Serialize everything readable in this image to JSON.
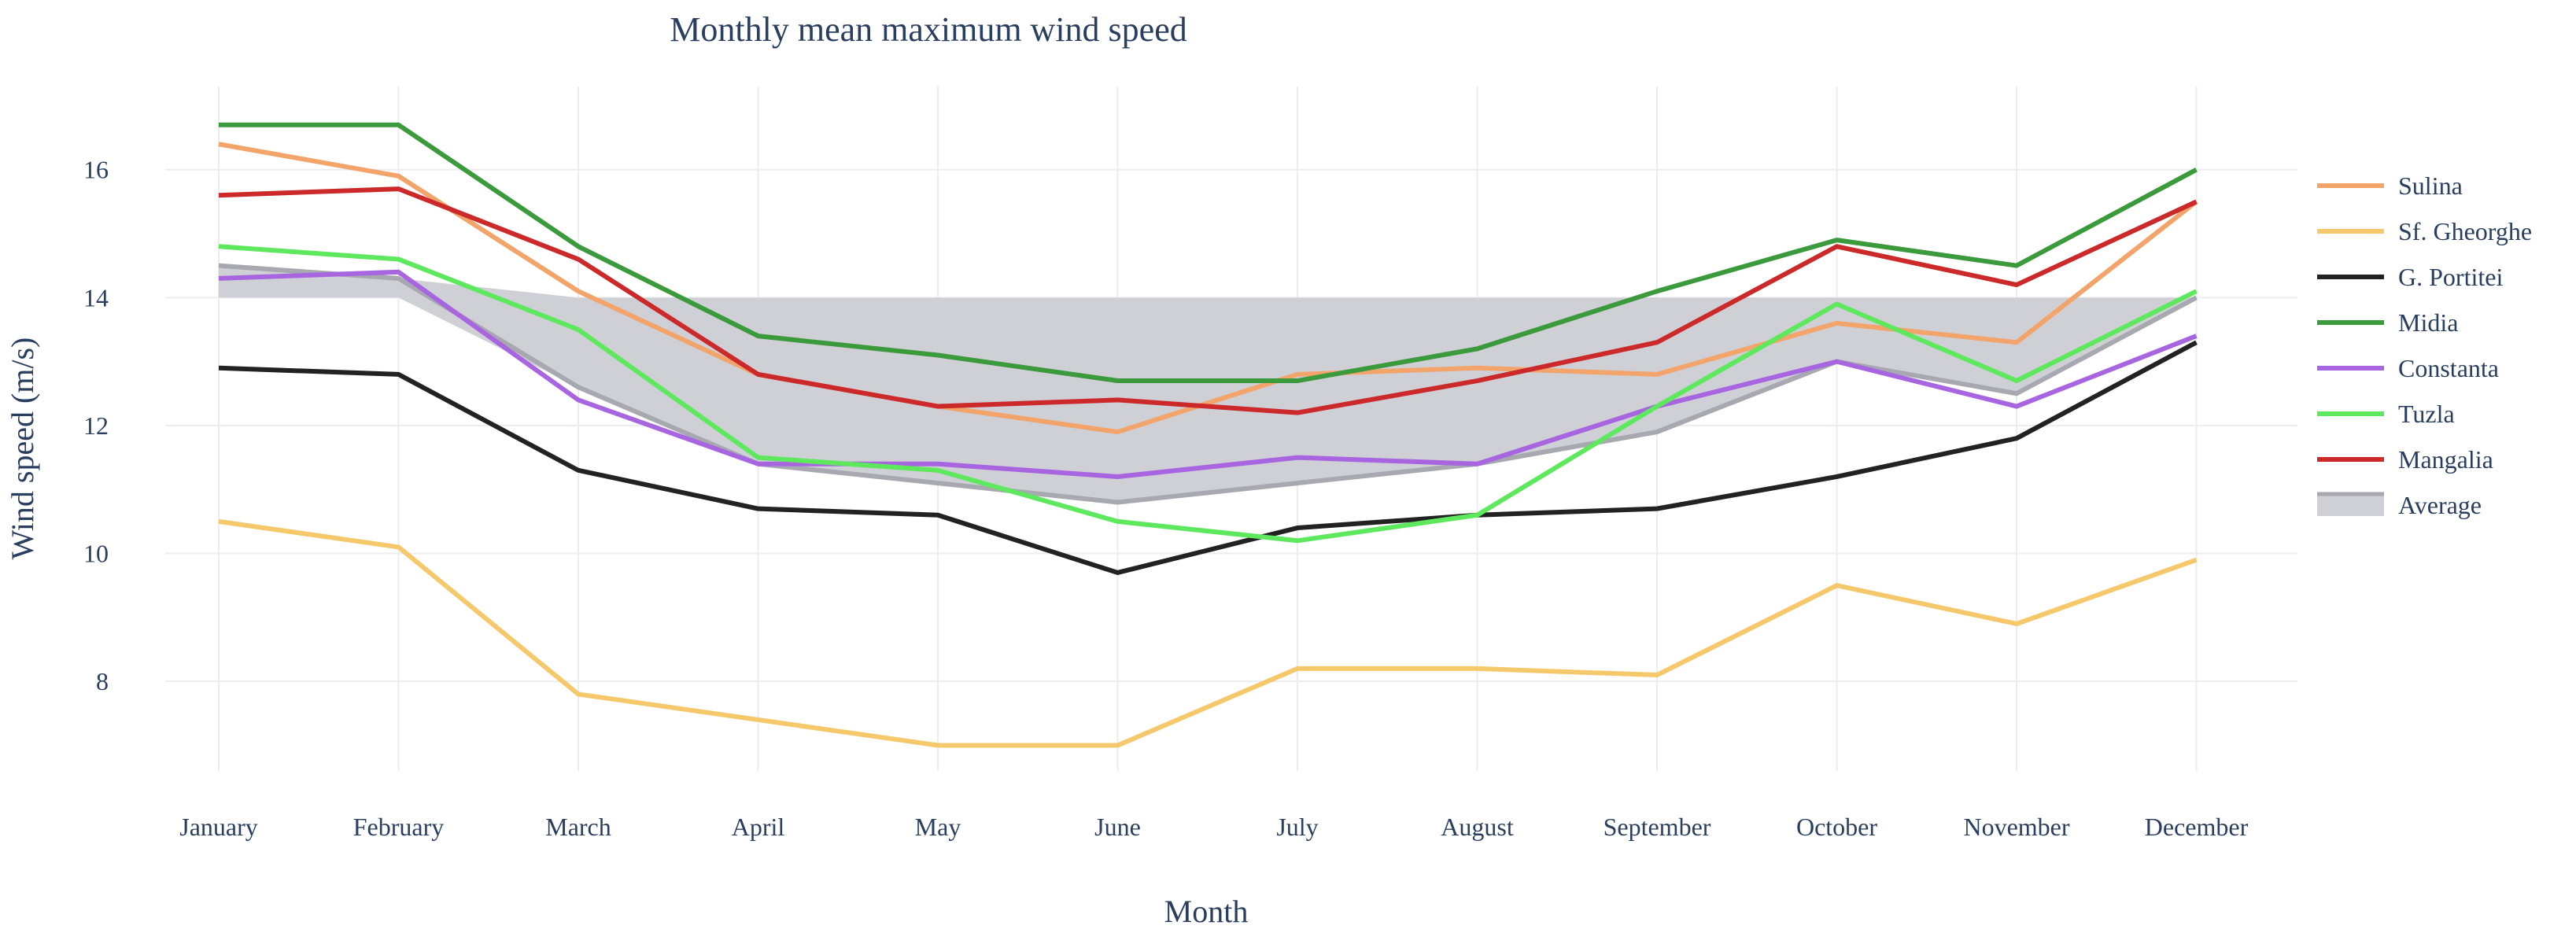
{
  "chart_data": {
    "type": "line",
    "title": "Monthly mean maximum wind speed",
    "xlabel": "Month",
    "ylabel": "Wind speed (m/s)",
    "categories": [
      "January",
      "February",
      "March",
      "April",
      "May",
      "June",
      "July",
      "August",
      "September",
      "October",
      "November",
      "December"
    ],
    "ylim": [
      6.6,
      17.3
    ],
    "yticks": [
      8,
      10,
      12,
      14,
      16
    ],
    "grid": true,
    "legend_position": "right",
    "shaded_band": {
      "lower": 14,
      "upper": 14,
      "color": "#cfcfd6"
    },
    "series": [
      {
        "name": "Sulina",
        "color": "#f2a46a",
        "values": [
          16.4,
          15.9,
          14.1,
          12.8,
          12.3,
          11.9,
          12.8,
          12.9,
          12.8,
          13.6,
          13.3,
          15.5
        ]
      },
      {
        "name": "Sf. Gheorghe",
        "color": "#f5c96b",
        "values": [
          10.5,
          10.1,
          7.8,
          7.4,
          7.0,
          7.0,
          8.2,
          8.2,
          8.1,
          9.5,
          8.9,
          9.9
        ]
      },
      {
        "name": "G. Portitei",
        "color": "#222222",
        "values": [
          12.9,
          12.8,
          11.3,
          10.7,
          10.6,
          9.7,
          10.4,
          10.6,
          10.7,
          11.2,
          11.8,
          13.3
        ]
      },
      {
        "name": "Midia",
        "color": "#3b9a3b",
        "values": [
          16.7,
          16.7,
          14.8,
          13.4,
          13.1,
          12.7,
          12.7,
          13.2,
          14.1,
          14.9,
          14.5,
          16.0
        ]
      },
      {
        "name": "Constanta",
        "color": "#a865e0",
        "values": [
          14.3,
          14.4,
          12.4,
          11.4,
          11.4,
          11.2,
          11.5,
          11.4,
          12.3,
          13.0,
          12.3,
          13.4
        ]
      },
      {
        "name": "Tuzla",
        "color": "#5ee85e",
        "values": [
          14.8,
          14.6,
          13.5,
          11.5,
          11.3,
          10.5,
          10.2,
          10.6,
          12.3,
          13.9,
          12.7,
          14.1
        ]
      },
      {
        "name": "Mangalia",
        "color": "#cc2a2a",
        "values": [
          15.6,
          15.7,
          14.6,
          12.8,
          12.3,
          12.4,
          12.2,
          12.7,
          13.3,
          14.8,
          14.2,
          15.5
        ]
      },
      {
        "name": "Average",
        "color": "#a8a8b0",
        "legend_fill": "#cfcfd6",
        "values": [
          14.5,
          14.3,
          12.6,
          11.4,
          11.1,
          10.8,
          11.1,
          11.4,
          11.9,
          13.0,
          12.5,
          14.0
        ]
      }
    ]
  }
}
